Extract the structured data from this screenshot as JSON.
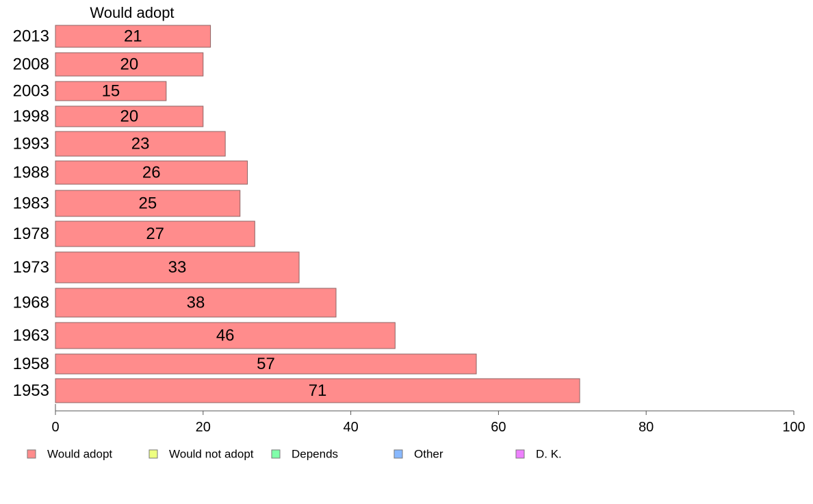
{
  "chart_data": {
    "type": "bar",
    "orientation": "horizontal",
    "title": "Would adopt",
    "categories": [
      "2013",
      "2008",
      "2003",
      "1998",
      "1993",
      "1988",
      "1983",
      "1978",
      "1973",
      "1968",
      "1963",
      "1958",
      "1953"
    ],
    "series": [
      {
        "name": "Would adopt",
        "color": "#ff8c8c",
        "values": [
          21,
          20,
          15,
          20,
          23,
          26,
          25,
          27,
          33,
          38,
          46,
          57,
          71
        ]
      }
    ],
    "xlim": [
      0,
      100
    ],
    "xticks": [
      "0",
      "20",
      "40",
      "60",
      "80",
      "100"
    ],
    "grid": false,
    "legend": {
      "placement": "bottom",
      "entries": [
        {
          "label": "Would adopt",
          "color": "#ff8c8c"
        },
        {
          "label": "Would not adopt",
          "color": "#eeff80"
        },
        {
          "label": "Depends",
          "color": "#80ffaa"
        },
        {
          "label": "Other",
          "color": "#88b8ff"
        },
        {
          "label": "D. K.",
          "color": "#ee80ff"
        }
      ]
    }
  }
}
